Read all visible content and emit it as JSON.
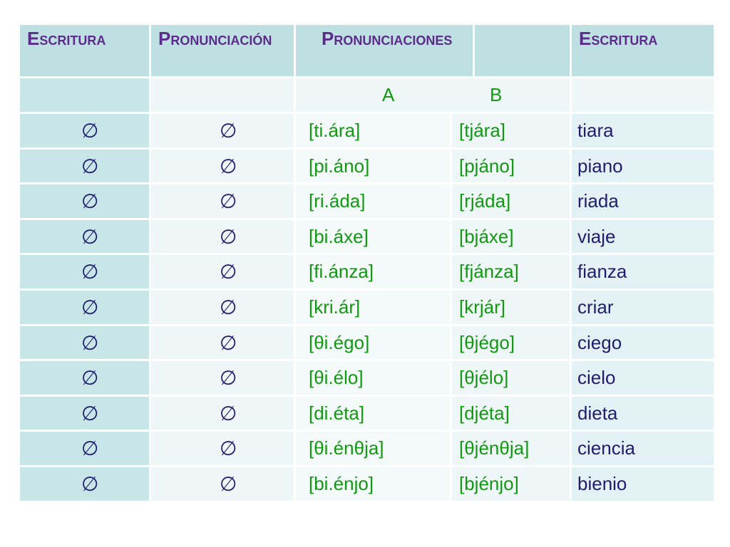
{
  "header": {
    "col1": "Escritura",
    "col2": "Pronunciación",
    "col3": "Pronunciaciones",
    "col5": "Escritura"
  },
  "subheader": {
    "a": "A",
    "b": "B"
  },
  "rows": [
    {
      "sym1": "∅",
      "sym2": "∅",
      "a": "[ti.ára]",
      "b": "[tjára]",
      "word": "tiara"
    },
    {
      "sym1": "∅",
      "sym2": "∅",
      "a": "[pi.áno]",
      "b": "[pjáno]",
      "word": "piano"
    },
    {
      "sym1": "∅",
      "sym2": "∅",
      "a": "[ri.áda]",
      "b": "[rjáda]",
      "word": "riada"
    },
    {
      "sym1": "∅",
      "sym2": "∅",
      "a": "[bi.áxe]",
      "b": "[bjáxe]",
      "word": "viaje"
    },
    {
      "sym1": "∅",
      "sym2": "∅",
      "a": "[fi.ánza]",
      "b": "[fjánza]",
      "word": "fianza"
    },
    {
      "sym1": "∅",
      "sym2": "∅",
      "a": "[kri.ár]",
      "b": "[krjár]",
      "word": "criar"
    },
    {
      "sym1": "∅",
      "sym2": "∅",
      "a": "[θi.égo]",
      "b": "[θjégo]",
      "word": "ciego"
    },
    {
      "sym1": "∅",
      "sym2": "∅",
      "a": "[θi.élo]",
      "b": "[θjélo]",
      "word": "cielo"
    },
    {
      "sym1": "∅",
      "sym2": "∅",
      "a": "[di.éta]",
      "b": "[djéta]",
      "word": "dieta"
    },
    {
      "sym1": "∅",
      "sym2": "∅",
      "a": "[θi.énθja]",
      "b": "[θjénθja]",
      "word": "ciencia"
    },
    {
      "sym1": "∅",
      "sym2": "∅",
      "a": "[bi.énjo]",
      "b": "[bjénjo]",
      "word": "bienio"
    }
  ],
  "colors": {
    "header_bg": "#bfe0e2",
    "header_text": "#5b2c8a",
    "pronunciation_text": "#119911",
    "word_text": "#1e1e6e"
  }
}
